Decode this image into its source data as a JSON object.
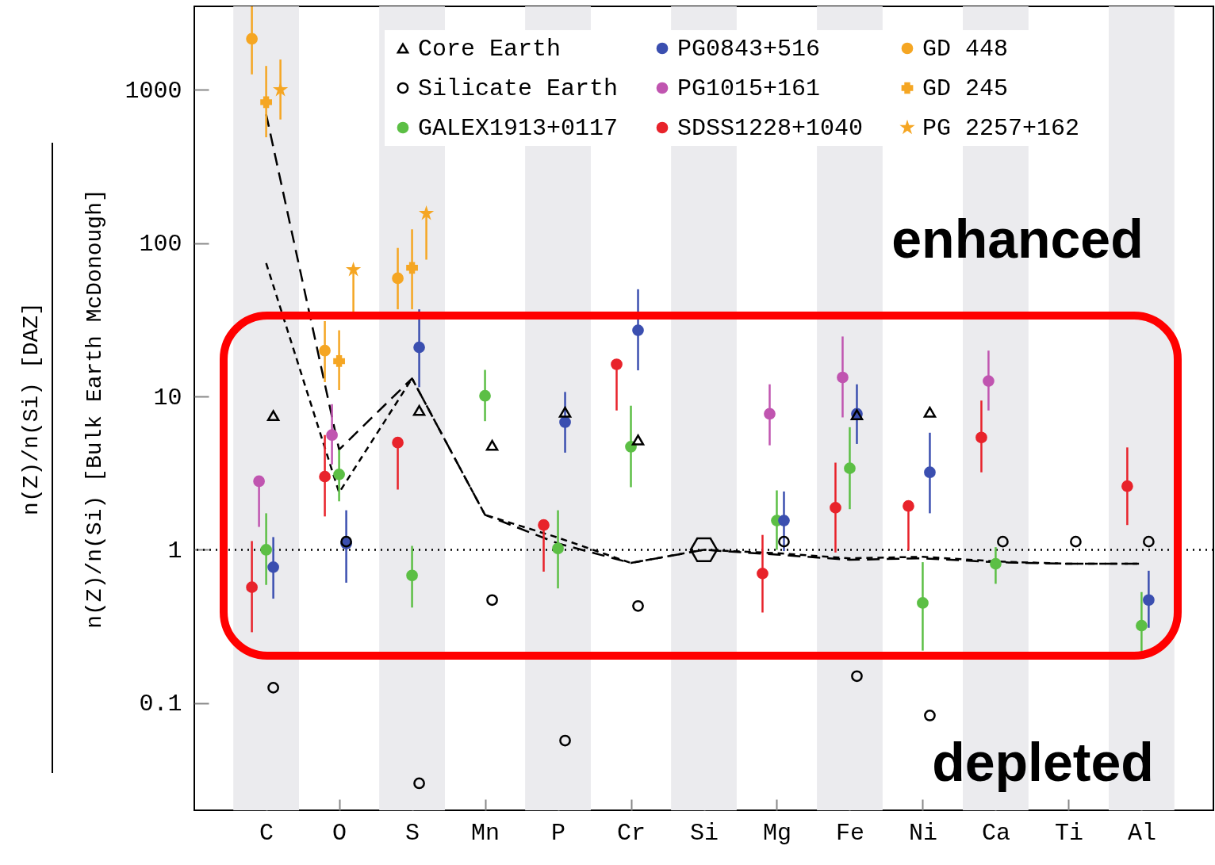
{
  "chart_data": {
    "type": "scatter",
    "ylabel": "n(Z)/n(Si) [DAZ]\nn(Z)/n(Si) [Bulk Earth McDonough]",
    "log": "y",
    "grid": false,
    "legend": "top",
    "categories": [
      "C",
      "O",
      "S",
      "Mn",
      "P",
      "Cr",
      "Si",
      "Mg",
      "Fe",
      "Ni",
      "Ca",
      "Ti",
      "Al"
    ],
    "ylim": [
      0.02,
      3500
    ],
    "yticks": [
      0.1,
      1,
      10,
      100,
      1000
    ],
    "bands": [
      {
        "axis": "x",
        "from": "C",
        "to": "C",
        "color": "#ebebee"
      },
      {
        "axis": "x",
        "from": "S",
        "to": "S",
        "color": "#ebebee"
      },
      {
        "axis": "x",
        "from": "P",
        "to": "P",
        "color": "#ebebee"
      },
      {
        "axis": "x",
        "from": "Si",
        "to": "Si",
        "color": "#ebebee"
      },
      {
        "axis": "x",
        "from": "Fe",
        "to": "Fe",
        "color": "#ebebee"
      },
      {
        "axis": "x",
        "from": "Ca",
        "to": "Ca",
        "color": "#ebebee"
      },
      {
        "axis": "x",
        "from": "Al",
        "to": "Al",
        "color": "#ebebee"
      }
    ],
    "ref_lines": [
      {
        "axis": "y",
        "value": 1,
        "line_style": "dotted",
        "color": "#000000"
      }
    ],
    "annotations": [
      "enhanced",
      "depleted"
    ],
    "series": [
      {
        "name": "Core Earth",
        "color": "#000000",
        "marker": "triangle",
        "x": [
          "C",
          "S",
          "Mn",
          "P",
          "Cr",
          "Fe",
          "Ni"
        ],
        "values": [
          7.5,
          8.1,
          4.8,
          7.9,
          5.2,
          7.6,
          7.9
        ]
      },
      {
        "name": "Silicate Earth",
        "color": "#000000",
        "marker": "circle",
        "x": [
          "C",
          "O",
          "S",
          "Mn",
          "P",
          "Cr",
          "Mg",
          "Fe",
          "Ni",
          "Ca",
          "Ti",
          "Al"
        ],
        "values": [
          0.126,
          1.13,
          0.03,
          0.47,
          0.057,
          0.43,
          1.13,
          0.15,
          0.083,
          1.13,
          1.13,
          1.13
        ]
      },
      {
        "name": "GALEX1913+0117",
        "color": "#5cbf45",
        "marker": "circle",
        "x": [
          "C",
          "O",
          "S",
          "Mn",
          "P",
          "Cr",
          "Mg",
          "Fe",
          "Ni",
          "Ca",
          "Al"
        ],
        "values": [
          1.0,
          3.1,
          0.68,
          10.1,
          1.02,
          4.7,
          1.55,
          3.4,
          0.45,
          0.81,
          0.32
        ],
        "errors": [
          [
            0.59,
            1.73
          ],
          [
            2.07,
            4.5
          ],
          [
            0.42,
            1.06
          ],
          [
            6.9,
            14.9
          ],
          [
            0.56,
            1.81
          ],
          [
            2.56,
            8.7
          ],
          [
            1.0,
            2.44
          ],
          [
            1.84,
            6.3
          ],
          [
            0.22,
            0.83
          ],
          [
            0.6,
            1.04
          ],
          [
            0.2,
            0.53
          ]
        ]
      },
      {
        "name": "PG0843+516",
        "color": "#3b4fb0",
        "marker": "circle",
        "x": [
          "C",
          "O",
          "S",
          "P",
          "Cr",
          "Mg",
          "Fe",
          "Ni",
          "Al"
        ],
        "values": [
          0.77,
          1.1,
          20.9,
          6.8,
          27,
          1.55,
          7.7,
          3.2,
          0.47
        ],
        "errors": [
          [
            0.48,
            1.21
          ],
          [
            0.61,
            1.81
          ],
          [
            11.5,
            37
          ],
          [
            4.3,
            10.7
          ],
          [
            14.8,
            50
          ],
          [
            0.98,
            2.4
          ],
          [
            4.9,
            12
          ],
          [
            1.73,
            5.8
          ],
          [
            0.31,
            0.73
          ]
        ]
      },
      {
        "name": "PG1015+161",
        "color": "#c055b0",
        "marker": "circle",
        "x": [
          "C",
          "O",
          "Mg",
          "Fe",
          "Ca"
        ],
        "values": [
          2.8,
          5.6,
          7.7,
          13.3,
          12.6
        ],
        "errors": [
          [
            1.41,
            2.8
          ],
          [
            3.6,
            8.9
          ],
          [
            4.8,
            12
          ],
          [
            7.3,
            24.6
          ],
          [
            8.1,
            19.9
          ]
        ]
      },
      {
        "name": "SDSS1228+1040",
        "color": "#e8232b",
        "marker": "circle",
        "x": [
          "C",
          "O",
          "S",
          "P",
          "Cr",
          "Mg",
          "Fe",
          "Ni",
          "Ca",
          "Al"
        ],
        "values": [
          0.57,
          3.0,
          5.0,
          1.45,
          16.2,
          0.7,
          1.88,
          1.93,
          5.4,
          2.6
        ],
        "errors": [
          [
            0.29,
            1.14
          ],
          [
            1.65,
            5.6
          ],
          [
            2.47,
            5.0
          ],
          [
            0.72,
            1.45
          ],
          [
            8.1,
            16.2
          ],
          [
            0.39,
            1.25
          ],
          [
            0.96,
            3.7
          ],
          [
            0.99,
            1.93
          ],
          [
            3.2,
            9.4
          ],
          [
            1.45,
            4.65
          ]
        ]
      },
      {
        "name": "GD 448",
        "color": "#f5a623",
        "marker": "circle",
        "x": [
          "C",
          "O",
          "S"
        ],
        "values": [
          2150,
          19.9,
          59
        ],
        "errors": [
          [
            1260,
            3500
          ],
          [
            12.4,
            31
          ],
          [
            37,
            93
          ]
        ]
      },
      {
        "name": "GD 245",
        "color": "#f5a623",
        "marker": "cross",
        "x": [
          "C",
          "O",
          "S"
        ],
        "values": [
          830,
          17,
          69
        ],
        "errors": [
          [
            490,
            1430
          ],
          [
            11,
            27
          ],
          [
            37,
            123
          ]
        ]
      },
      {
        "name": "PG 2257+162",
        "color": "#f5a623",
        "marker": "star",
        "x": [
          "C",
          "O",
          "S"
        ],
        "values": [
          1000,
          67,
          156
        ],
        "errors": [
          [
            640,
            1575
          ],
          [
            35,
            67
          ],
          [
            78,
            156
          ]
        ]
      },
      {
        "color": "#000000",
        "x": [
          "Si"
        ],
        "values": [
          1
        ]
      },
      {
        "type": "line",
        "color": "#000000",
        "line_style": "dashed",
        "marker": "none",
        "values": [
          692,
          4.5,
          13.1,
          1.69,
          1.1,
          0.82,
          1.0,
          0.93,
          0.86,
          0.88,
          0.83,
          0.81,
          0.81
        ]
      },
      {
        "type": "line",
        "color": "#000000",
        "line_style": "dashed",
        "marker": "none",
        "values": [
          74,
          2.36,
          13.1,
          1.69,
          1.2,
          0.82,
          1.0,
          0.95,
          0.88,
          0.9,
          0.84,
          0.81,
          0.81
        ]
      }
    ]
  }
}
